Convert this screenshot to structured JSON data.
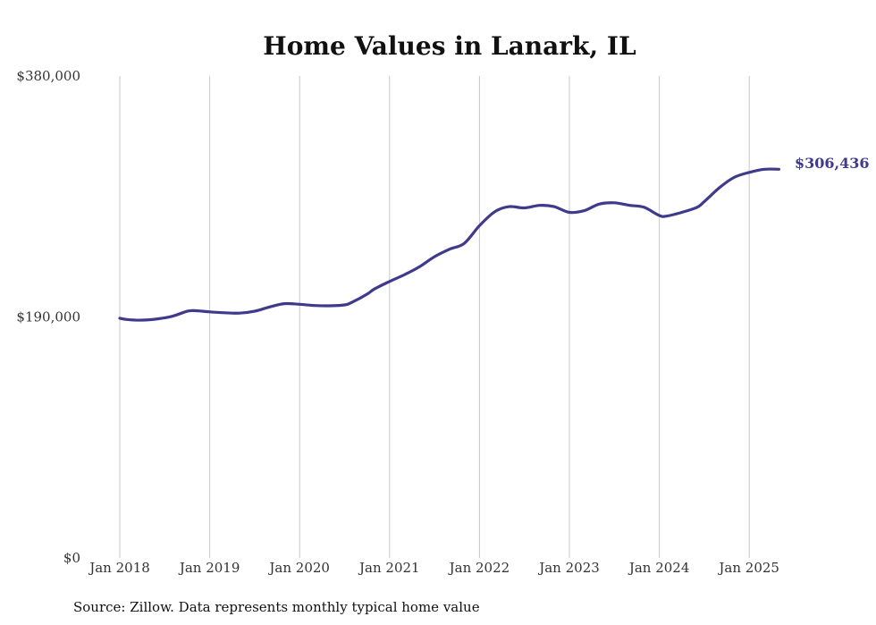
{
  "chart_data": {
    "type": "line",
    "title": "Home Values in Lanark, IL",
    "source": "Source: Zillow. Data represents monthly typical home value",
    "ylim": [
      0,
      380000
    ],
    "y_ticks": [
      {
        "value": 0,
        "label": "$0"
      },
      {
        "value": 190000,
        "label": "$190,000"
      },
      {
        "value": 380000,
        "label": "$380,000"
      }
    ],
    "x_ticks": [
      {
        "value": 2018.0,
        "label": "Jan 2018"
      },
      {
        "value": 2019.0,
        "label": "Jan 2019"
      },
      {
        "value": 2020.0,
        "label": "Jan 2020"
      },
      {
        "value": 2021.0,
        "label": "Jan 2021"
      },
      {
        "value": 2022.0,
        "label": "Jan 2022"
      },
      {
        "value": 2023.0,
        "label": "Jan 2023"
      },
      {
        "value": 2024.0,
        "label": "Jan 2024"
      },
      {
        "value": 2025.0,
        "label": "Jan 2025"
      }
    ],
    "grid": "vertical",
    "line_color": "#3f3a8c",
    "end_label": "$306,436",
    "series": [
      {
        "x": [
          2018.0,
          2018.08,
          2018.25,
          2018.42,
          2018.58,
          2018.75,
          2018.83,
          2019.0,
          2019.17,
          2019.33,
          2019.5,
          2019.67,
          2019.83,
          2020.0,
          2020.17,
          2020.33,
          2020.5,
          2020.58,
          2020.75,
          2020.83,
          2021.0,
          2021.17,
          2021.33,
          2021.5,
          2021.67,
          2021.83,
          2022.0,
          2022.17,
          2022.33,
          2022.5,
          2022.67,
          2022.83,
          2023.0,
          2023.17,
          2023.33,
          2023.5,
          2023.67,
          2023.83,
          2024.0,
          2024.08,
          2024.25,
          2024.42,
          2024.5,
          2024.67,
          2024.83,
          2025.0,
          2025.17,
          2025.33
        ],
        "y": [
          189000,
          188000,
          187500,
          188500,
          190500,
          194500,
          195000,
          194000,
          193300,
          193000,
          194500,
          198000,
          200500,
          200000,
          199000,
          198800,
          199500,
          201500,
          208000,
          212000,
          218000,
          223500,
          229500,
          237500,
          243500,
          248000,
          262000,
          273000,
          277000,
          276000,
          278000,
          277000,
          272500,
          274000,
          279000,
          280000,
          278000,
          276500,
          270000,
          269500,
          272500,
          276500,
          281000,
          292000,
          300000,
          304000,
          306500,
          306436
        ]
      }
    ]
  }
}
